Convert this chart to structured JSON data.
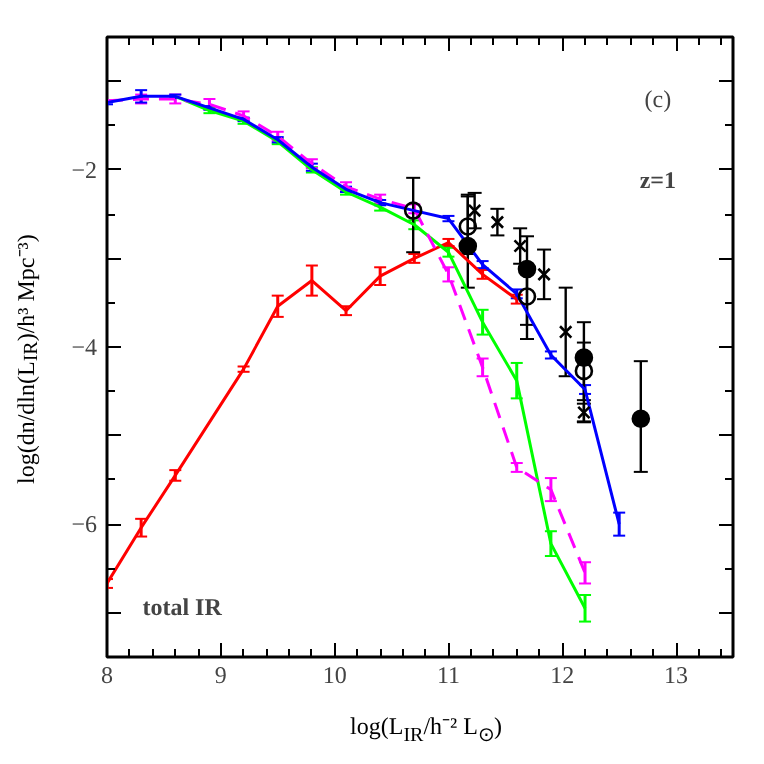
{
  "chart_data": {
    "type": "line",
    "xlabel": "log(L$_{IR}$/h⁻² L$_{⊙}$)",
    "ylabel": "log(dn/dln(L$_{IR}$)/h³ Mpc⁻³)",
    "xlim": [
      8,
      13.5
    ],
    "ylim": [
      -7.5,
      -0.5
    ],
    "xticks": [
      8,
      9,
      10,
      11,
      12,
      13
    ],
    "yticks": [
      {
        "value": -1,
        "label": null
      },
      -2,
      {
        "value": -3,
        "label": null
      },
      -4,
      {
        "value": -5,
        "label": null
      },
      -6,
      {
        "value": -7,
        "label": null
      }
    ],
    "grid": false,
    "annotations": [
      "(c)",
      "z=1",
      "total IR"
    ],
    "series": [
      {
        "color": "#ff0000",
        "x": [
          8.0,
          8.3,
          8.6,
          9.2,
          9.5,
          9.8,
          10.1,
          10.4,
          10.7,
          11.0,
          11.3,
          11.6
        ],
        "values": [
          -6.67,
          -6.04,
          -5.45,
          -4.25,
          -3.54,
          -3.25,
          -3.59,
          -3.2,
          -3.0,
          -2.82,
          -3.18,
          -3.46
        ],
        "errors": [
          0.05,
          0.1,
          0.06,
          0.03,
          0.12,
          0.17,
          0.05,
          0.1,
          0.05,
          0.04,
          0.05,
          0.05
        ]
      },
      {
        "color": "#00ff00",
        "x": [
          8.6,
          8.9,
          9.2,
          9.5,
          9.8,
          10.1,
          10.4,
          10.7,
          11.0,
          11.3,
          11.6,
          11.9,
          12.2
        ],
        "values": [
          -1.17,
          -1.33,
          -1.45,
          -1.68,
          -2.0,
          -2.25,
          -2.42,
          -2.62,
          -2.93,
          -3.72,
          -4.38,
          -6.22,
          -6.95
        ],
        "errors": [
          null,
          0.03,
          0.03,
          0.03,
          0.03,
          0.03,
          0.04,
          0.05,
          0.05,
          0.14,
          0.2,
          0.14,
          0.15
        ]
      },
      {
        "color": "#ff00ff",
        "line_style": "dashed",
        "x": [
          8.0,
          8.3,
          8.6,
          8.9,
          9.2,
          9.5,
          9.8,
          10.1,
          10.4,
          10.7,
          11.0,
          11.3,
          11.6,
          11.9,
          12.2
        ],
        "values": [
          -1.22,
          -1.2,
          -1.2,
          -1.26,
          -1.39,
          -1.62,
          -1.93,
          -2.19,
          -2.33,
          -2.44,
          -3.18,
          -4.23,
          -5.36,
          -5.61,
          -6.55
        ],
        "errors": [
          null,
          0.05,
          0.05,
          0.06,
          0.05,
          0.05,
          0.05,
          0.05,
          0.05,
          0.05,
          0.08,
          0.1,
          0.05,
          0.13,
          0.12
        ]
      },
      {
        "color": "#0000ff",
        "x": [
          8.0,
          8.3,
          8.6,
          8.9,
          9.2,
          9.5,
          9.8,
          10.1,
          10.4,
          10.7,
          11.0,
          11.3,
          11.6,
          11.9,
          12.2,
          12.5
        ],
        "values": [
          -1.24,
          -1.17,
          -1.17,
          -1.3,
          -1.43,
          -1.66,
          -1.97,
          -2.22,
          -2.37,
          -2.46,
          -2.55,
          -3.07,
          -3.4,
          -4.09,
          -4.48,
          -6.0
        ],
        "errors": [
          0.02,
          0.07,
          0.02,
          0.02,
          0.02,
          0.03,
          0.04,
          0.03,
          0.03,
          null,
          0.03,
          0.04,
          0.05,
          0.04,
          0.05,
          0.13
        ]
      },
      {
        "type": "scatter",
        "color": "#000000",
        "marker": "circle",
        "x": [
          11.17,
          11.69,
          12.19,
          12.69
        ],
        "values": [
          -2.86,
          -3.12,
          -4.12,
          -4.81
        ],
        "errors": [
          [
            -3.33,
            -2.28
          ],
          [
            -3.91,
            -2.75
          ],
          [
            -4.85,
            -3.72
          ],
          [
            -5.41,
            -4.16
          ]
        ]
      },
      {
        "type": "scatter",
        "color": "#000000",
        "marker": "circle_open",
        "x": [
          10.69,
          11.17,
          11.69,
          12.19
        ],
        "values": [
          -2.46,
          -2.64,
          -3.43,
          -4.27
        ],
        "errors": [
          [
            -2.93,
            -2.09
          ],
          [
            -2.95,
            -2.3
          ],
          [
            -3.75,
            -3.1
          ],
          [
            -4.6,
            -3.95
          ]
        ]
      },
      {
        "type": "scatter",
        "color": "#000000",
        "marker": "cross",
        "x": [
          11.23,
          11.43,
          11.63,
          11.84,
          12.03,
          12.19
        ],
        "values": [
          -2.46,
          -2.59,
          -2.86,
          -3.18,
          -3.83,
          -4.74
        ],
        "errors": [
          0.2,
          0.15,
          0.2,
          0.28,
          0.5,
          0.1
        ]
      }
    ]
  }
}
